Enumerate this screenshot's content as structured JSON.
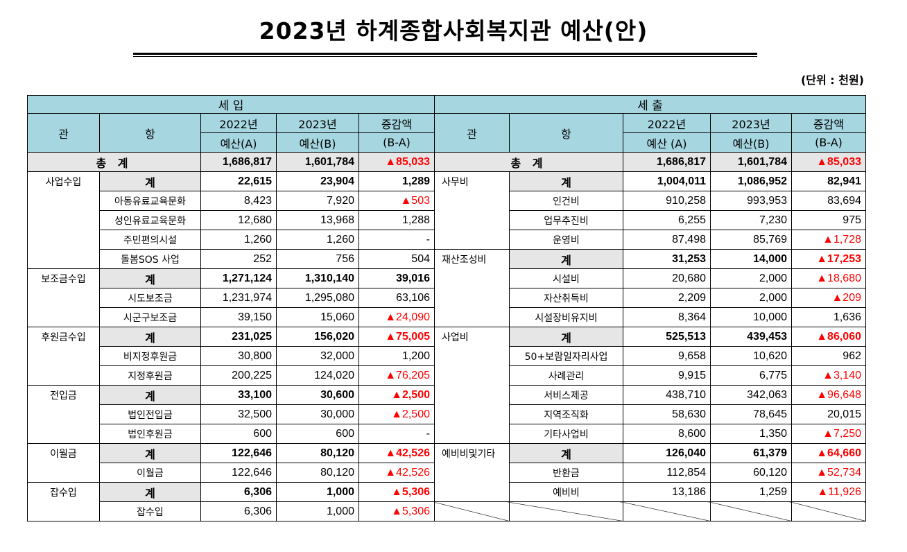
{
  "title": "2023년 하계종합사회복지관 예산(안)",
  "unit": "(단위 : 천원)",
  "colors": {
    "header_bg": "#a6d6e0",
    "subtotal_bg": "#e6e6e6",
    "negative": "#ff0000"
  },
  "header": {
    "income": "세          입",
    "expense": "세          출",
    "gwan": "관",
    "hang": "항",
    "y2022": "2022년",
    "budgetA": "예산(A)",
    "budgetA2": "예산 (A)",
    "y2023": "2023년",
    "budgetB": "예산(B)",
    "change": "증감액",
    "ba": "(B-A)"
  },
  "total": {
    "income": {
      "label": "총 계",
      "a": "1,686,817",
      "b": "1,601,784",
      "c": "▲85,033"
    },
    "expense": {
      "label": "총 계",
      "a": "1,686,817",
      "b": "1,601,784",
      "c": "▲85,033"
    }
  },
  "rows": [
    {
      "i_cat": "사업수입",
      "i_item": "계",
      "i_a": "22,615",
      "i_b": "23,904",
      "i_c": "1,289",
      "e_cat": "사무비",
      "e_item": "계",
      "e_a": "1,004,011",
      "e_b": "1,086,952",
      "e_c": "82,941"
    },
    {
      "i_item": "아동유료교육문화",
      "i_a": "8,423",
      "i_b": "7,920",
      "i_c": "▲503",
      "e_item": "인건비",
      "e_a": "910,258",
      "e_b": "993,953",
      "e_c": "83,694"
    },
    {
      "i_item": "성인유료교육문화",
      "i_a": "12,680",
      "i_b": "13,968",
      "i_c": "1,288",
      "e_item": "업무추진비",
      "e_a": "6,255",
      "e_b": "7,230",
      "e_c": "975"
    },
    {
      "i_item": "주민편의시설",
      "i_a": "1,260",
      "i_b": "1,260",
      "i_c": "-",
      "e_item": "운영비",
      "e_a": "87,498",
      "e_b": "85,769",
      "e_c": "▲1,728"
    },
    {
      "i_item": "돌봄SOS 사업",
      "i_a": "252",
      "i_b": "756",
      "i_c": "504",
      "e_cat": "재산조성비",
      "e_item": "계",
      "e_a": "31,253",
      "e_b": "14,000",
      "e_c": "▲17,253"
    },
    {
      "i_cat": "보조금수입",
      "i_item": "계",
      "i_a": "1,271,124",
      "i_b": "1,310,140",
      "i_c": "39,016",
      "e_item": "시설비",
      "e_a": "20,680",
      "e_b": "2,000",
      "e_c": "▲18,680"
    },
    {
      "i_item": "시도보조금",
      "i_a": "1,231,974",
      "i_b": "1,295,080",
      "i_c": "63,106",
      "e_item": "자산취득비",
      "e_a": "2,209",
      "e_b": "2,000",
      "e_c": "▲209"
    },
    {
      "i_item": "시군구보조금",
      "i_a": "39,150",
      "i_b": "15,060",
      "i_c": "▲24,090",
      "e_item": "시설장비유지비",
      "e_a": "8,364",
      "e_b": "10,000",
      "e_c": "1,636"
    },
    {
      "i_cat": "후원금수입",
      "i_item": "계",
      "i_a": "231,025",
      "i_b": "156,020",
      "i_c": "▲75,005",
      "e_cat": "사업비",
      "e_item": "계",
      "e_a": "525,513",
      "e_b": "439,453",
      "e_c": "▲86,060"
    },
    {
      "i_item": "비지정후원금",
      "i_a": "30,800",
      "i_b": "32,000",
      "i_c": "1,200",
      "e_item": "50+보람일자리사업",
      "e_a": "9,658",
      "e_b": "10,620",
      "e_c": "962"
    },
    {
      "i_item": "지정후원금",
      "i_a": "200,225",
      "i_b": "124,020",
      "i_c": "▲76,205",
      "e_item": "사례관리",
      "e_a": "9,915",
      "e_b": "6,775",
      "e_c": "▲3,140"
    },
    {
      "i_cat": "전입금",
      "i_item": "계",
      "i_a": "33,100",
      "i_b": "30,600",
      "i_c": "▲2,500",
      "e_item": "서비스제공",
      "e_a": "438,710",
      "e_b": "342,063",
      "e_c": "▲96,648"
    },
    {
      "i_item": "법인전입금",
      "i_a": "32,500",
      "i_b": "30,000",
      "i_c": "▲2,500",
      "e_item": "지역조직화",
      "e_a": "58,630",
      "e_b": "78,645",
      "e_c": "20,015"
    },
    {
      "i_item": "법인후원금",
      "i_a": "600",
      "i_b": "600",
      "i_c": "-",
      "e_item": "기타사업비",
      "e_a": "8,600",
      "e_b": "1,350",
      "e_c": "▲7,250"
    },
    {
      "i_cat": "이월금",
      "i_item": "계",
      "i_a": "122,646",
      "i_b": "80,120",
      "i_c": "▲42,526",
      "e_cat": "예비비및기타",
      "e_item": "계",
      "e_a": "126,040",
      "e_b": "61,379",
      "e_c": "▲64,660"
    },
    {
      "i_item": "이월금",
      "i_a": "122,646",
      "i_b": "80,120",
      "i_c": "▲42,526",
      "e_item": "반환금",
      "e_a": "112,854",
      "e_b": "60,120",
      "e_c": "▲52,734"
    },
    {
      "i_cat": "잡수입",
      "i_item": "계",
      "i_a": "6,306",
      "i_b": "1,000",
      "i_c": "▲5,306",
      "e_item": "예비비",
      "e_a": "13,186",
      "e_b": "1,259",
      "e_c": "▲11,926"
    },
    {
      "i_item": "잡수입",
      "i_a": "6,306",
      "i_b": "1,000",
      "i_c": "▲5,306"
    }
  ]
}
